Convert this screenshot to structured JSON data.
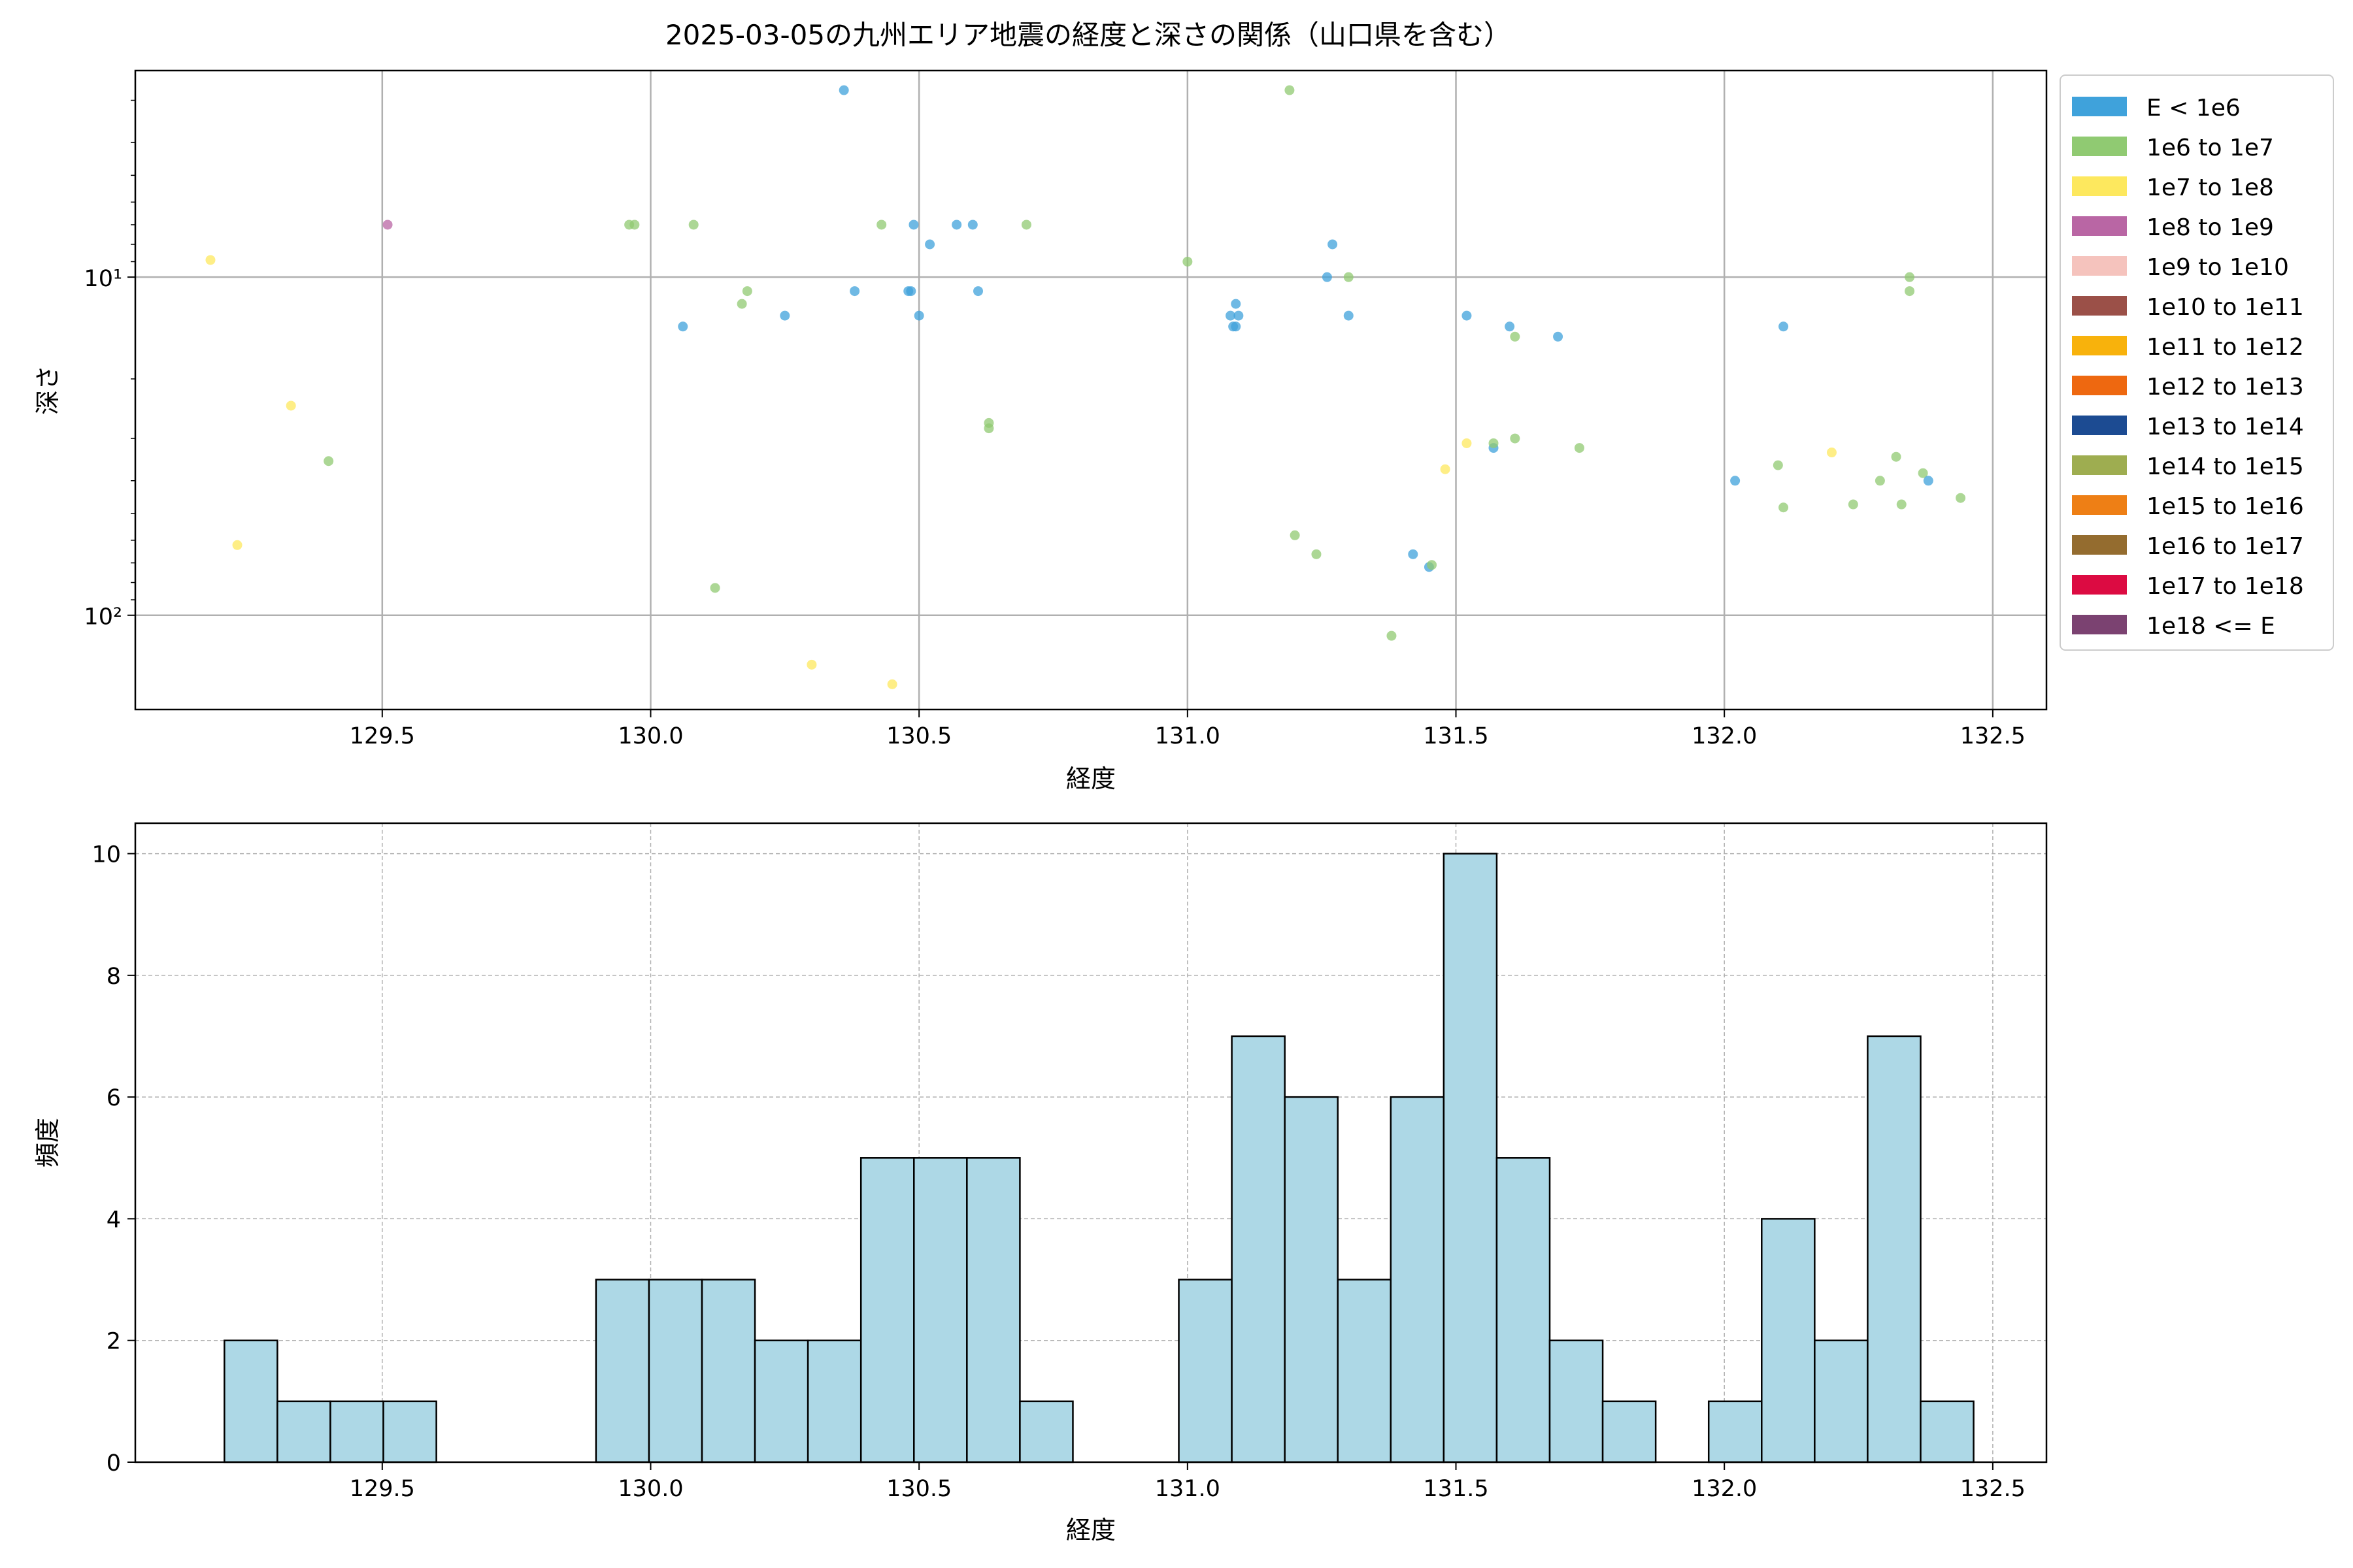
{
  "title": "2025-03-05の九州エリア地震の経度と深さの関係（山口県を含む）",
  "chart_data": [
    {
      "type": "scatter",
      "xlabel": "経度",
      "ylabel": "深さ",
      "y_scale": "log",
      "y_inverted": true,
      "xlim": [
        129.04,
        132.6
      ],
      "ylim": [
        190,
        2.45
      ],
      "x_ticks": [
        "129.5",
        "130.0",
        "130.5",
        "131.0",
        "131.5",
        "132.0",
        "132.5"
      ],
      "y_ticks": [
        "10¹",
        "10²"
      ],
      "grid": true,
      "legend_position": "outside-right",
      "legend": [
        {
          "label": "E < 1e6",
          "color": "#3fa2db"
        },
        {
          "label": "1e6 to 1e7",
          "color": "#90ca72"
        },
        {
          "label": "1e7 to 1e8",
          "color": "#fde85e"
        },
        {
          "label": "1e8 to 1e9",
          "color": "#b966a4"
        },
        {
          "label": "1e9 to 1e10",
          "color": "#f5c3bd"
        },
        {
          "label": "1e10 to 1e11",
          "color": "#9b5048"
        },
        {
          "label": "1e11 to 1e12",
          "color": "#f8b20c"
        },
        {
          "label": "1e12 to 1e13",
          "color": "#ee6810"
        },
        {
          "label": "1e13 to 1e14",
          "color": "#1c4b92"
        },
        {
          "label": "1e14 to 1e15",
          "color": "#9ead50"
        },
        {
          "label": "1e15 to 1e16",
          "color": "#ee7f15"
        },
        {
          "label": "1e16 to 1e17",
          "color": "#946c2f"
        },
        {
          "label": "1e17 to 1e18",
          "color": "#dc0b42"
        },
        {
          "label": "1e18 <= E",
          "color": "#7b4271"
        }
      ],
      "points": [
        {
          "x": 129.18,
          "y": 8.9,
          "c": 2
        },
        {
          "x": 129.23,
          "y": 62,
          "c": 2
        },
        {
          "x": 129.33,
          "y": 24,
          "c": 2
        },
        {
          "x": 129.4,
          "y": 35,
          "c": 1
        },
        {
          "x": 129.51,
          "y": 7,
          "c": 3
        },
        {
          "x": 129.96,
          "y": 7,
          "c": 1
        },
        {
          "x": 129.97,
          "y": 7,
          "c": 1
        },
        {
          "x": 130.06,
          "y": 14,
          "c": 0
        },
        {
          "x": 130.08,
          "y": 7,
          "c": 1
        },
        {
          "x": 130.12,
          "y": 83,
          "c": 1
        },
        {
          "x": 130.17,
          "y": 12,
          "c": 1
        },
        {
          "x": 130.18,
          "y": 11,
          "c": 1
        },
        {
          "x": 130.25,
          "y": 13,
          "c": 0
        },
        {
          "x": 130.3,
          "y": 140,
          "c": 2
        },
        {
          "x": 130.36,
          "y": 2.8,
          "c": 0
        },
        {
          "x": 130.38,
          "y": 11,
          "c": 0
        },
        {
          "x": 130.43,
          "y": 7,
          "c": 1
        },
        {
          "x": 130.45,
          "y": 160,
          "c": 2
        },
        {
          "x": 130.48,
          "y": 11,
          "c": 0
        },
        {
          "x": 130.485,
          "y": 11,
          "c": 0
        },
        {
          "x": 130.49,
          "y": 7,
          "c": 0
        },
        {
          "x": 130.5,
          "y": 13,
          "c": 0
        },
        {
          "x": 130.52,
          "y": 8,
          "c": 0
        },
        {
          "x": 130.57,
          "y": 7,
          "c": 0
        },
        {
          "x": 130.6,
          "y": 7,
          "c": 0
        },
        {
          "x": 130.61,
          "y": 11,
          "c": 0
        },
        {
          "x": 130.63,
          "y": 28,
          "c": 1
        },
        {
          "x": 130.63,
          "y": 27,
          "c": 1
        },
        {
          "x": 130.7,
          "y": 7,
          "c": 1
        },
        {
          "x": 131.0,
          "y": 9,
          "c": 1
        },
        {
          "x": 131.08,
          "y": 13,
          "c": 0
        },
        {
          "x": 131.085,
          "y": 14,
          "c": 0
        },
        {
          "x": 131.09,
          "y": 12,
          "c": 0
        },
        {
          "x": 131.09,
          "y": 14,
          "c": 0
        },
        {
          "x": 131.095,
          "y": 13,
          "c": 0
        },
        {
          "x": 131.19,
          "y": 2.8,
          "c": 1
        },
        {
          "x": 131.2,
          "y": 58,
          "c": 1
        },
        {
          "x": 131.24,
          "y": 66,
          "c": 1
        },
        {
          "x": 131.26,
          "y": 10,
          "c": 0
        },
        {
          "x": 131.27,
          "y": 8,
          "c": 0
        },
        {
          "x": 131.3,
          "y": 10,
          "c": 1
        },
        {
          "x": 131.3,
          "y": 13,
          "c": 0
        },
        {
          "x": 131.38,
          "y": 115,
          "c": 1
        },
        {
          "x": 131.42,
          "y": 66,
          "c": 0
        },
        {
          "x": 131.45,
          "y": 72,
          "c": 0
        },
        {
          "x": 131.455,
          "y": 71,
          "c": 1
        },
        {
          "x": 131.48,
          "y": 37,
          "c": 2
        },
        {
          "x": 131.52,
          "y": 31,
          "c": 2
        },
        {
          "x": 131.52,
          "y": 13,
          "c": 0
        },
        {
          "x": 131.57,
          "y": 32,
          "c": 0
        },
        {
          "x": 131.57,
          "y": 31,
          "c": 1
        },
        {
          "x": 131.6,
          "y": 14,
          "c": 0
        },
        {
          "x": 131.61,
          "y": 15,
          "c": 1
        },
        {
          "x": 131.61,
          "y": 30,
          "c": 1
        },
        {
          "x": 131.69,
          "y": 15,
          "c": 0
        },
        {
          "x": 131.73,
          "y": 32,
          "c": 1
        },
        {
          "x": 132.02,
          "y": 40,
          "c": 0
        },
        {
          "x": 132.1,
          "y": 36,
          "c": 1
        },
        {
          "x": 132.11,
          "y": 14,
          "c": 0
        },
        {
          "x": 132.11,
          "y": 48,
          "c": 1
        },
        {
          "x": 132.2,
          "y": 33,
          "c": 2
        },
        {
          "x": 132.24,
          "y": 47,
          "c": 1
        },
        {
          "x": 132.29,
          "y": 40,
          "c": 1
        },
        {
          "x": 132.32,
          "y": 34,
          "c": 1
        },
        {
          "x": 132.33,
          "y": 47,
          "c": 1
        },
        {
          "x": 132.345,
          "y": 10,
          "c": 1
        },
        {
          "x": 132.345,
          "y": 11,
          "c": 1
        },
        {
          "x": 132.37,
          "y": 38,
          "c": 1
        },
        {
          "x": 132.38,
          "y": 40,
          "c": 0
        },
        {
          "x": 132.44,
          "y": 45,
          "c": 1
        }
      ]
    },
    {
      "type": "histogram",
      "xlabel": "経度",
      "ylabel": "頻度",
      "xlim": [
        129.04,
        132.6
      ],
      "ylim": [
        0,
        10.5
      ],
      "x_ticks": [
        "129.5",
        "130.0",
        "130.5",
        "131.0",
        "131.5",
        "132.0",
        "132.5"
      ],
      "y_ticks": [
        "0",
        "2",
        "4",
        "6",
        "8",
        "10"
      ],
      "grid": true,
      "bar_color": "#add8e6",
      "bin_width": 0.0987,
      "bins": [
        {
          "start": 129.206,
          "count": 2
        },
        {
          "start": 129.3047,
          "count": 1
        },
        {
          "start": 129.4034,
          "count": 1
        },
        {
          "start": 129.5021,
          "count": 1
        },
        {
          "start": 129.8982,
          "count": 3
        },
        {
          "start": 129.9969,
          "count": 3
        },
        {
          "start": 130.0956,
          "count": 3
        },
        {
          "start": 130.1943,
          "count": 2
        },
        {
          "start": 130.293,
          "count": 2
        },
        {
          "start": 130.3917,
          "count": 5
        },
        {
          "start": 130.4904,
          "count": 5
        },
        {
          "start": 130.5891,
          "count": 5
        },
        {
          "start": 130.6878,
          "count": 1
        },
        {
          "start": 130.9838,
          "count": 3
        },
        {
          "start": 131.0825,
          "count": 7
        },
        {
          "start": 131.1812,
          "count": 6
        },
        {
          "start": 131.2799,
          "count": 3
        },
        {
          "start": 131.3786,
          "count": 6
        },
        {
          "start": 131.4773,
          "count": 10
        },
        {
          "start": 131.576,
          "count": 5
        },
        {
          "start": 131.6747,
          "count": 2
        },
        {
          "start": 131.7734,
          "count": 1
        },
        {
          "start": 131.9708,
          "count": 1
        },
        {
          "start": 132.0695,
          "count": 4
        },
        {
          "start": 132.1682,
          "count": 2
        },
        {
          "start": 132.2669,
          "count": 7
        },
        {
          "start": 132.3656,
          "count": 1
        }
      ]
    }
  ]
}
